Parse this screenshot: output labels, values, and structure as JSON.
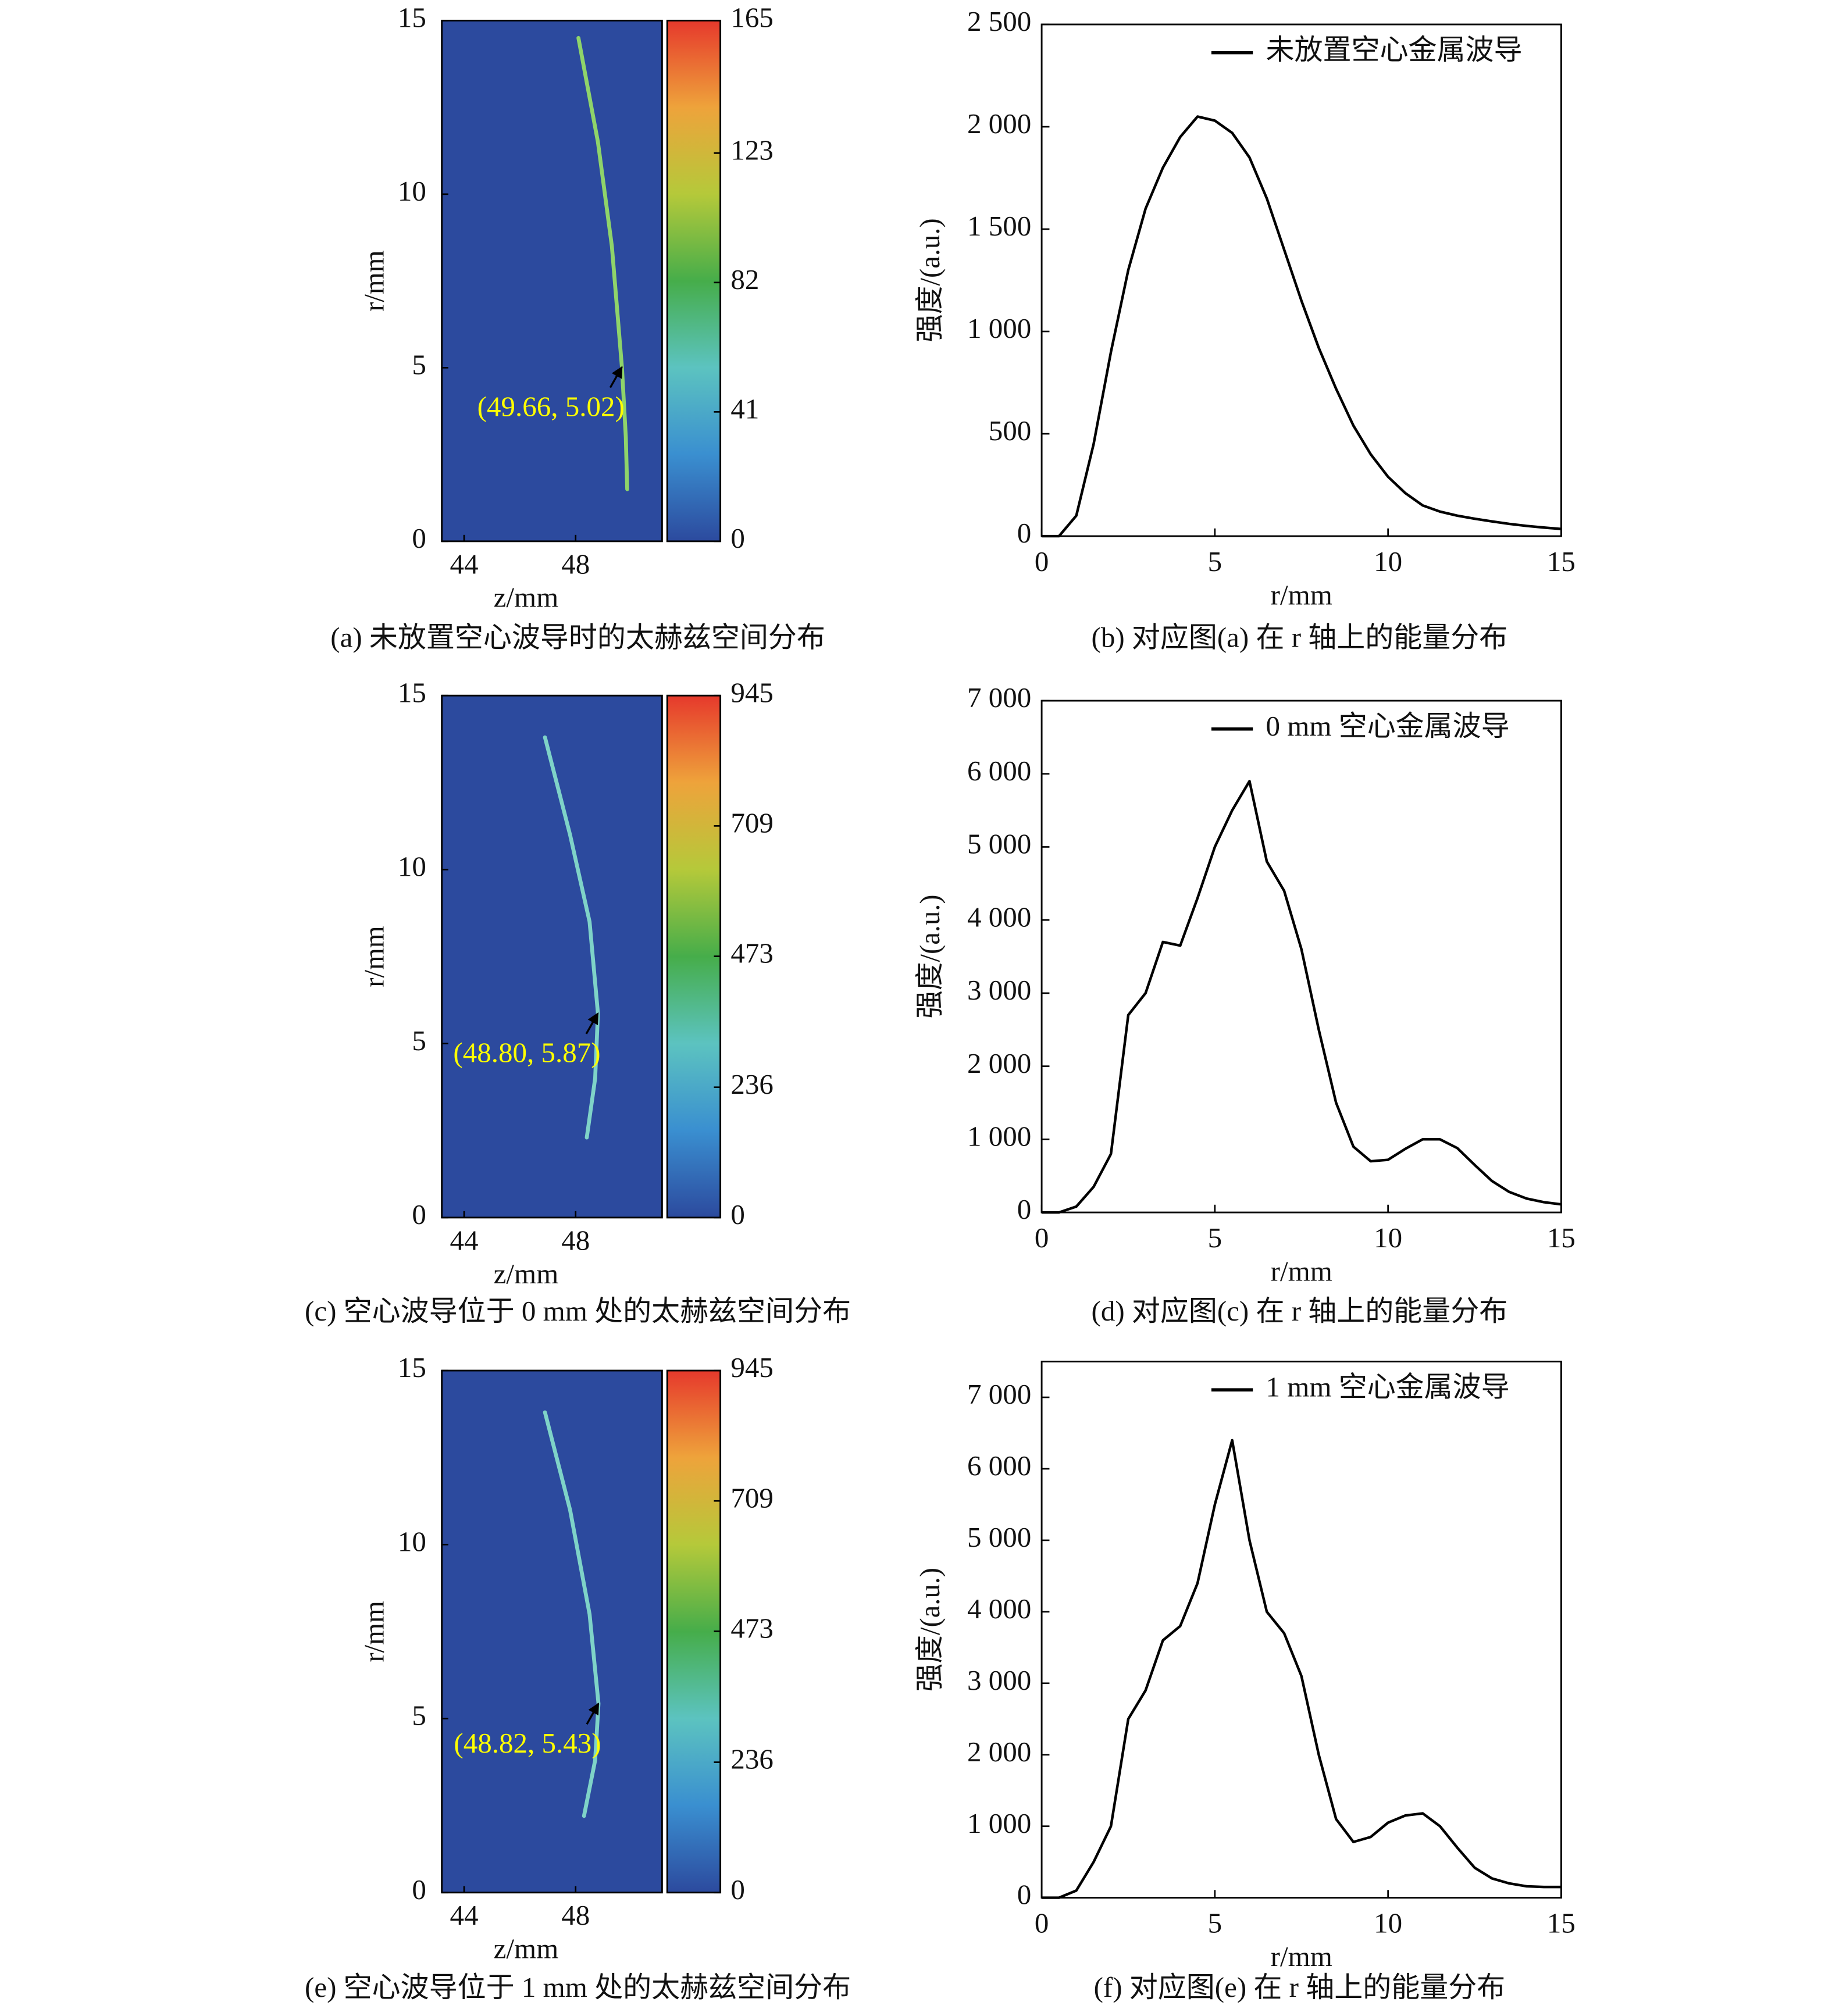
{
  "chart_data": [
    {
      "type": "heatmap",
      "caption": "(a) 未放置空心波导时的太赫兹空间分布",
      "xlabel": "z/mm",
      "ylabel": "r/mm",
      "xlim": [
        43.2,
        51.1
      ],
      "ylim": [
        0,
        15
      ],
      "xticks": [
        44,
        48
      ],
      "yticks": [
        0,
        5,
        10,
        15
      ],
      "clim": [
        0,
        165
      ],
      "cticks": [
        0,
        41,
        82,
        123,
        165
      ],
      "colormap": [
        "#2c4a9e",
        "#3a8fd0",
        "#5cc3c0",
        "#46ad4a",
        "#b5c93a",
        "#eea33b",
        "#e6392c"
      ],
      "ridge": {
        "x": [
          48.1,
          48.8,
          49.3,
          49.66,
          49.8,
          49.85
        ],
        "y": [
          14.5,
          11.5,
          8.5,
          5.02,
          3,
          1.5
        ]
      },
      "ridge_color": "#8fd46a",
      "annotation": {
        "text": "(49.66, 5.02)",
        "x": 49.66,
        "y": 5.02
      },
      "annotation_color": "#ffff00"
    },
    {
      "type": "line",
      "caption": "(b) 对应图(a) 在 r 轴上的能量分布",
      "xlabel": "r/mm",
      "ylabel": "强度/(a.u.)",
      "x": [
        0,
        0.5,
        1,
        1.5,
        2,
        2.5,
        3,
        3.5,
        4,
        4.5,
        5,
        5.5,
        6,
        6.5,
        7,
        7.5,
        8,
        8.5,
        9,
        9.5,
        10,
        10.5,
        11,
        11.5,
        12,
        12.5,
        13,
        13.5,
        14,
        14.5,
        15
      ],
      "series": [
        {
          "name": "未放置空心金属波导",
          "color": "#000000",
          "values": [
            0,
            0,
            100,
            450,
            900,
            1300,
            1600,
            1800,
            1950,
            2050,
            2030,
            1970,
            1850,
            1650,
            1400,
            1150,
            920,
            720,
            540,
            400,
            290,
            210,
            150,
            120,
            100,
            85,
            72,
            60,
            50,
            42,
            35
          ]
        }
      ],
      "xlim": [
        0,
        15
      ],
      "ylim": [
        0,
        2500
      ],
      "xticks": [
        0,
        5,
        10,
        15
      ],
      "yticks": [
        0,
        500,
        {
          "value": 1000,
          "label": "1 000"
        },
        {
          "value": 1500,
          "label": "1 500"
        },
        {
          "value": 2000,
          "label": "2 000"
        },
        {
          "value": 2500,
          "label": "2 500"
        }
      ],
      "legend": "upper right"
    },
    {
      "type": "heatmap",
      "caption": "(c) 空心波导位于 0 mm 处的太赫兹空间分布",
      "xlabel": "z/mm",
      "ylabel": "r/mm",
      "xlim": [
        43.2,
        51.1
      ],
      "ylim": [
        0,
        15
      ],
      "xticks": [
        44,
        48
      ],
      "yticks": [
        0,
        5,
        10,
        15
      ],
      "clim": [
        0,
        945
      ],
      "cticks": [
        0,
        236,
        473,
        709,
        945
      ],
      "colormap": [
        "#2c4a9e",
        "#3a8fd0",
        "#5cc3c0",
        "#46ad4a",
        "#b5c93a",
        "#eea33b",
        "#e6392c"
      ],
      "ridge": {
        "x": [
          46.9,
          47.8,
          48.5,
          48.8,
          48.7,
          48.4
        ],
        "y": [
          13.8,
          11,
          8.5,
          5.87,
          4,
          2.3
        ]
      },
      "ridge_color": "#7fd3c8",
      "annotation": {
        "text": "(48.80, 5.87)",
        "x": 48.8,
        "y": 5.87
      },
      "annotation_color": "#ffff00"
    },
    {
      "type": "line",
      "caption": "(d) 对应图(c) 在 r 轴上的能量分布",
      "xlabel": "r/mm",
      "ylabel": "强度/(a.u.)",
      "x": [
        0,
        0.5,
        1,
        1.5,
        2,
        2.5,
        3,
        3.5,
        4,
        4.5,
        5,
        5.5,
        6,
        6.5,
        7,
        7.5,
        8,
        8.5,
        9,
        9.5,
        10,
        10.5,
        11,
        11.5,
        12,
        12.5,
        13,
        13.5,
        14,
        14.5,
        15
      ],
      "series": [
        {
          "name": "0 mm 空心金属波导",
          "color": "#000000",
          "values": [
            0,
            0,
            80,
            350,
            800,
            2700,
            3000,
            3700,
            3650,
            4300,
            5000,
            5500,
            5900,
            4800,
            4400,
            3600,
            2500,
            1500,
            900,
            700,
            720,
            870,
            1000,
            1000,
            880,
            650,
            430,
            280,
            190,
            140,
            110
          ]
        }
      ],
      "xlim": [
        0,
        15
      ],
      "ylim": [
        0,
        7000
      ],
      "xticks": [
        0,
        5,
        10,
        15
      ],
      "yticks": [
        0,
        {
          "value": 1000,
          "label": "1 000"
        },
        {
          "value": 2000,
          "label": "2 000"
        },
        {
          "value": 3000,
          "label": "3 000"
        },
        {
          "value": 4000,
          "label": "4 000"
        },
        {
          "value": 5000,
          "label": "5 000"
        },
        {
          "value": 6000,
          "label": "6 000"
        },
        {
          "value": 7000,
          "label": "7 000"
        }
      ],
      "legend": "upper right"
    },
    {
      "type": "heatmap",
      "caption": "(e) 空心波导位于 1 mm 处的太赫兹空间分布",
      "xlabel": "z/mm",
      "ylabel": "r/mm",
      "xlim": [
        43.2,
        51.1
      ],
      "ylim": [
        0,
        15
      ],
      "xticks": [
        44,
        48
      ],
      "yticks": [
        0,
        5,
        10,
        15
      ],
      "clim": [
        0,
        945
      ],
      "cticks": [
        0,
        236,
        473,
        709,
        945
      ],
      "colormap": [
        "#2c4a9e",
        "#3a8fd0",
        "#5cc3c0",
        "#46ad4a",
        "#b5c93a",
        "#eea33b",
        "#e6392c"
      ],
      "ridge": {
        "x": [
          46.9,
          47.8,
          48.5,
          48.82,
          48.7,
          48.3
        ],
        "y": [
          13.8,
          11,
          8,
          5.43,
          3.8,
          2.2
        ]
      },
      "ridge_color": "#7fd3c8",
      "annotation": {
        "text": "(48.82, 5.43)",
        "x": 48.82,
        "y": 5.43
      },
      "annotation_color": "#ffff00"
    },
    {
      "type": "line",
      "caption": "(f) 对应图(e) 在 r 轴上的能量分布",
      "xlabel": "r/mm",
      "ylabel": "强度/(a.u.)",
      "x": [
        0,
        0.5,
        1,
        1.5,
        2,
        2.5,
        3,
        3.5,
        4,
        4.5,
        5,
        5.5,
        6,
        6.5,
        7,
        7.5,
        8,
        8.5,
        9,
        9.5,
        10,
        10.5,
        11,
        11.5,
        12,
        12.5,
        13,
        13.5,
        14,
        14.5,
        15
      ],
      "series": [
        {
          "name": "1 mm 空心金属波导",
          "color": "#000000",
          "values": [
            0,
            0,
            100,
            500,
            1000,
            2500,
            2900,
            3600,
            3800,
            4400,
            5500,
            6400,
            5000,
            4000,
            3700,
            3100,
            2000,
            1100,
            780,
            850,
            1050,
            1150,
            1180,
            1000,
            700,
            420,
            270,
            200,
            160,
            150,
            150
          ]
        }
      ],
      "xlim": [
        0,
        15
      ],
      "ylim": [
        0,
        7500
      ],
      "xticks": [
        0,
        5,
        10,
        15
      ],
      "yticks": [
        0,
        {
          "value": 1000,
          "label": "1 000"
        },
        {
          "value": 2000,
          "label": "2 000"
        },
        {
          "value": 3000,
          "label": "3 000"
        },
        {
          "value": 4000,
          "label": "4 000"
        },
        {
          "value": 5000,
          "label": "5 000"
        },
        {
          "value": 6000,
          "label": "6 000"
        },
        {
          "value": 7000,
          "label": "7 000"
        }
      ],
      "legend": "upper right"
    }
  ]
}
